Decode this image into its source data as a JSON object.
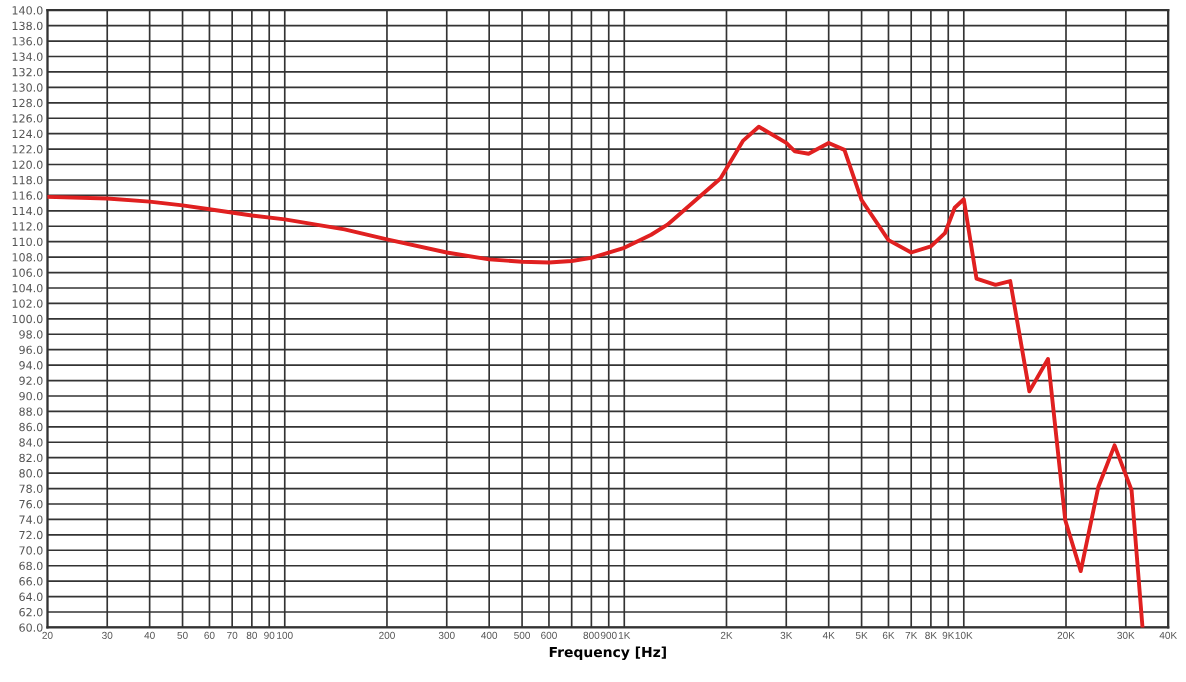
{
  "chart_data": {
    "type": "line",
    "xlabel": "Frequency [Hz]",
    "log": "x",
    "grid": true,
    "marker": "none",
    "line_style": "solid",
    "xlim": [
      20,
      40000
    ],
    "ylim": [
      60,
      140
    ],
    "xticks": [
      20,
      30,
      40,
      50,
      60,
      {
        "value": 70,
        "label": "70"
      },
      80,
      90,
      100,
      200,
      300,
      400,
      500,
      600,
      {
        "value": 700,
        "label": null
      },
      800,
      900,
      {
        "value": 1000,
        "label": "1K"
      },
      {
        "value": 2000,
        "label": "2K"
      },
      {
        "value": 3000,
        "label": "3K"
      },
      {
        "value": 4000,
        "label": "4K"
      },
      {
        "value": 5000,
        "label": "5K"
      },
      {
        "value": 6000,
        "label": "6K"
      },
      {
        "value": 7000,
        "label": "7K"
      },
      {
        "value": 8000,
        "label": "8K"
      },
      {
        "value": 9000,
        "label": "9K"
      },
      {
        "value": 10000,
        "label": "10K"
      },
      {
        "value": 20000,
        "label": "20K"
      },
      {
        "value": 30000,
        "label": "30K"
      },
      {
        "value": 40000,
        "label": "40K"
      }
    ],
    "yticks": [
      {
        "value": 60,
        "label": "60.0"
      },
      {
        "value": 62,
        "label": "62.0"
      },
      {
        "value": 64,
        "label": "64.0"
      },
      {
        "value": 66,
        "label": "66.0"
      },
      {
        "value": 68,
        "label": "68.0"
      },
      {
        "value": 70,
        "label": "70.0"
      },
      {
        "value": 72,
        "label": "72.0"
      },
      {
        "value": 74,
        "label": "74.0"
      },
      {
        "value": 76,
        "label": "76.0"
      },
      {
        "value": 78,
        "label": "78.0"
      },
      {
        "value": 80,
        "label": "80.0"
      },
      {
        "value": 82,
        "label": "82.0"
      },
      {
        "value": 84,
        "label": "84.0"
      },
      {
        "value": 86,
        "label": "86.0"
      },
      {
        "value": 88,
        "label": "88.0"
      },
      {
        "value": 90,
        "label": "90.0"
      },
      {
        "value": 92,
        "label": "92.0"
      },
      {
        "value": 94,
        "label": "94.0"
      },
      {
        "value": 96,
        "label": "96.0"
      },
      {
        "value": 98,
        "label": "98.0"
      },
      {
        "value": 100,
        "label": "100.0"
      },
      {
        "value": 102,
        "label": "102.0"
      },
      {
        "value": 104,
        "label": "104.0"
      },
      {
        "value": 106,
        "label": "106.0"
      },
      {
        "value": 108,
        "label": "108.0"
      },
      {
        "value": 110,
        "label": "110.0"
      },
      {
        "value": 112,
        "label": "112.0"
      },
      {
        "value": 114,
        "label": "114.0"
      },
      {
        "value": 116,
        "label": "116.0"
      },
      {
        "value": 118,
        "label": "118.0"
      },
      {
        "value": 120,
        "label": "120.0"
      },
      {
        "value": 122,
        "label": "122.0"
      },
      {
        "value": 124,
        "label": "124.0"
      },
      {
        "value": 126,
        "label": "126.0"
      },
      {
        "value": 128,
        "label": "128.0"
      },
      {
        "value": 130,
        "label": "130.0"
      },
      {
        "value": 132,
        "label": "132.0"
      },
      {
        "value": 134,
        "label": "134.0"
      },
      {
        "value": 136,
        "label": "136.0"
      },
      {
        "value": 138,
        "label": "138.0"
      },
      {
        "value": 140,
        "label": "140.0"
      }
    ],
    "series": [
      {
        "color": "#e02020",
        "x": [
          20,
          30,
          40,
          50,
          60,
          80,
          100,
          150,
          200,
          300,
          400,
          500,
          600,
          700,
          800,
          1000,
          1200,
          1340,
          1920,
          2240,
          2490,
          3000,
          3180,
          3490,
          4000,
          4450,
          5000,
          6000,
          7000,
          8000,
          8800,
          9400,
          10000,
          10900,
          12400,
          13700,
          15600,
          17700,
          19900,
          22100,
          24900,
          27800,
          31200,
          33600
        ],
        "values": [
          115.8,
          115.6,
          115.2,
          114.7,
          114.2,
          113.4,
          112.9,
          111.6,
          110.3,
          108.6,
          107.7,
          107.4,
          107.3,
          107.5,
          107.9,
          109.2,
          110.9,
          112.2,
          118.2,
          123.1,
          124.9,
          122.8,
          121.7,
          121.4,
          122.8,
          121.9,
          115.4,
          110.2,
          108.6,
          109.4,
          111.1,
          114.4,
          115.5,
          105.2,
          104.4,
          104.9,
          90.6,
          94.8,
          73.9,
          67.3,
          78.2,
          83.6,
          77.8,
          60
        ]
      }
    ]
  }
}
